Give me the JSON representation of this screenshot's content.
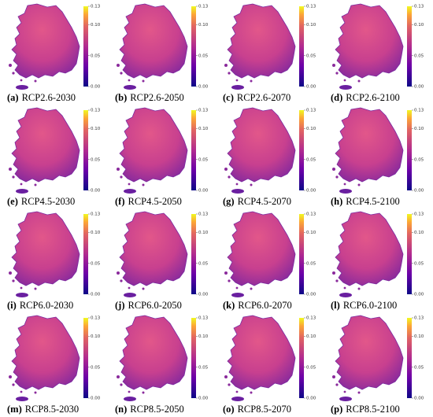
{
  "colorbar": {
    "ticks": [
      "0.00",
      "0.05",
      "0.10",
      "0.13"
    ]
  },
  "panels": [
    {
      "tag": "(a)",
      "name": "RCP2.6-2030"
    },
    {
      "tag": "(b)",
      "name": "RCP2.6-2050"
    },
    {
      "tag": "(c)",
      "name": "RCP2.6-2070"
    },
    {
      "tag": "(d)",
      "name": "RCP2.6-2100"
    },
    {
      "tag": "(e)",
      "name": "RCP4.5-2030"
    },
    {
      "tag": "(f)",
      "name": "RCP4.5-2050"
    },
    {
      "tag": "(g)",
      "name": "RCP4.5-2070"
    },
    {
      "tag": "(h)",
      "name": "RCP4.5-2100"
    },
    {
      "tag": "(i)",
      "name": "RCP6.0-2030"
    },
    {
      "tag": "(j)",
      "name": "RCP6.0-2050"
    },
    {
      "tag": "(k)",
      "name": "RCP6.0-2070"
    },
    {
      "tag": "(l)",
      "name": "RCP6.0-2100"
    },
    {
      "tag": "(m)",
      "name": "RCP8.5-2030"
    },
    {
      "tag": "(n)",
      "name": "RCP8.5-2050"
    },
    {
      "tag": "(o)",
      "name": "RCP8.5-2070"
    },
    {
      "tag": "(p)",
      "name": "RCP8.5-2100"
    }
  ]
}
